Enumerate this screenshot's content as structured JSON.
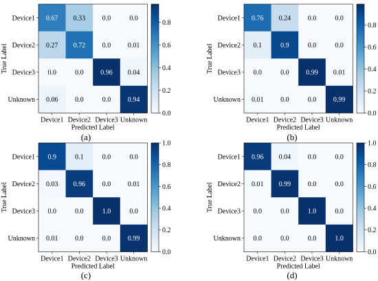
{
  "chart_data": [
    {
      "type": "heatmap",
      "panel_label": "(a)",
      "xlabel": "Predicted Label",
      "ylabel": "True Label",
      "rows": [
        "Device1",
        "Device2",
        "Device3",
        "Unknown"
      ],
      "cols": [
        "Device1",
        "Device2",
        "Device3",
        "Unknown"
      ],
      "values": [
        [
          0.67,
          0.33,
          0.0,
          0.0
        ],
        [
          0.27,
          0.72,
          0.0,
          0.01
        ],
        [
          0.0,
          0.0,
          0.96,
          0.04
        ],
        [
          0.06,
          0.0,
          0.0,
          0.94
        ]
      ],
      "cell_labels": [
        [
          "0.67",
          "0.33",
          "0.0",
          "0.0"
        ],
        [
          "0.27",
          "0.72",
          "0.0",
          "0.01"
        ],
        [
          "0.0",
          "0.0",
          "0.96",
          "0.04"
        ],
        [
          "0.06",
          "0.0",
          "0.0",
          "0.94"
        ]
      ],
      "colorbar": {
        "range": [
          0,
          0.96
        ],
        "ticks": [
          "0.0",
          "0.2",
          "0.4",
          "0.6",
          "0.8"
        ],
        "tick_values": [
          0,
          0.2,
          0.4,
          0.6,
          0.8
        ],
        "colormap": "Blues"
      }
    },
    {
      "type": "heatmap",
      "panel_label": "(b)",
      "xlabel": "Predicted Label",
      "ylabel": "True Label",
      "rows": [
        "Device1",
        "Device2",
        "Device3",
        "Unknown"
      ],
      "cols": [
        "Device1",
        "Device2",
        "Device3",
        "Unknown"
      ],
      "values": [
        [
          0.76,
          0.24,
          0.0,
          0.0
        ],
        [
          0.1,
          0.9,
          0.0,
          0.0
        ],
        [
          0.0,
          0.0,
          0.99,
          0.01
        ],
        [
          0.01,
          0.0,
          0.0,
          0.99
        ]
      ],
      "cell_labels": [
        [
          "0.76",
          "0.24",
          "0.0",
          "0.0"
        ],
        [
          "0.1",
          "0.9",
          "0.0",
          "0.0"
        ],
        [
          "0.0",
          "0.0",
          "0.99",
          "0.01"
        ],
        [
          "0.01",
          "0.0",
          "0.0",
          "0.99"
        ]
      ],
      "colorbar": {
        "range": [
          0,
          0.99
        ],
        "ticks": [
          "0.0",
          "0.2",
          "0.4",
          "0.6",
          "0.8"
        ],
        "tick_values": [
          0,
          0.2,
          0.4,
          0.6,
          0.8
        ],
        "colormap": "Blues"
      }
    },
    {
      "type": "heatmap",
      "panel_label": "(c)",
      "xlabel": "Predicted Label",
      "ylabel": "True Label",
      "rows": [
        "Device1",
        "Device2",
        "Device3",
        "Unknown"
      ],
      "cols": [
        "Device1",
        "Device2",
        "Device3",
        "Unknown"
      ],
      "values": [
        [
          0.9,
          0.1,
          0.0,
          0.0
        ],
        [
          0.03,
          0.96,
          0.0,
          0.01
        ],
        [
          0.0,
          0.0,
          1.0,
          0.0
        ],
        [
          0.01,
          0.0,
          0.0,
          0.99
        ]
      ],
      "cell_labels": [
        [
          "0.9",
          "0.1",
          "0.0",
          "0.0"
        ],
        [
          "0.03",
          "0.96",
          "0.0",
          "0.01"
        ],
        [
          "0.0",
          "0.0",
          "1.0",
          "0.0"
        ],
        [
          "0.01",
          "0.0",
          "0.0",
          "0.99"
        ]
      ],
      "colorbar": {
        "range": [
          0,
          1.0
        ],
        "ticks": [
          "0.0",
          "0.2",
          "0.4",
          "0.6",
          "0.8",
          "1.0"
        ],
        "tick_values": [
          0,
          0.2,
          0.4,
          0.6,
          0.8,
          1.0
        ],
        "colormap": "Blues"
      }
    },
    {
      "type": "heatmap",
      "panel_label": "(d)",
      "xlabel": "Predicted Label",
      "ylabel": "True Label",
      "rows": [
        "Device1",
        "Device2",
        "Device3",
        "Unknown"
      ],
      "cols": [
        "Device1",
        "Device2",
        "Device3",
        "Unknown"
      ],
      "values": [
        [
          0.96,
          0.04,
          0.0,
          0.0
        ],
        [
          0.01,
          0.99,
          0.0,
          0.0
        ],
        [
          0.0,
          0.0,
          1.0,
          0.0
        ],
        [
          0.0,
          0.0,
          0.0,
          1.0
        ]
      ],
      "cell_labels": [
        [
          "0.96",
          "0.04",
          "0.0",
          "0.0"
        ],
        [
          "0.01",
          "0.99",
          "0.0",
          "0.0"
        ],
        [
          "0.0",
          "0.0",
          "1.0",
          "0.0"
        ],
        [
          "0.0",
          "0.0",
          "0.0",
          "1.0"
        ]
      ],
      "colorbar": {
        "range": [
          0,
          1.0
        ],
        "ticks": [
          "0.0",
          "0.2",
          "0.4",
          "0.6",
          "0.8",
          "1.0"
        ],
        "tick_values": [
          0,
          0.2,
          0.4,
          0.6,
          0.8,
          1.0
        ],
        "colormap": "Blues"
      }
    }
  ]
}
